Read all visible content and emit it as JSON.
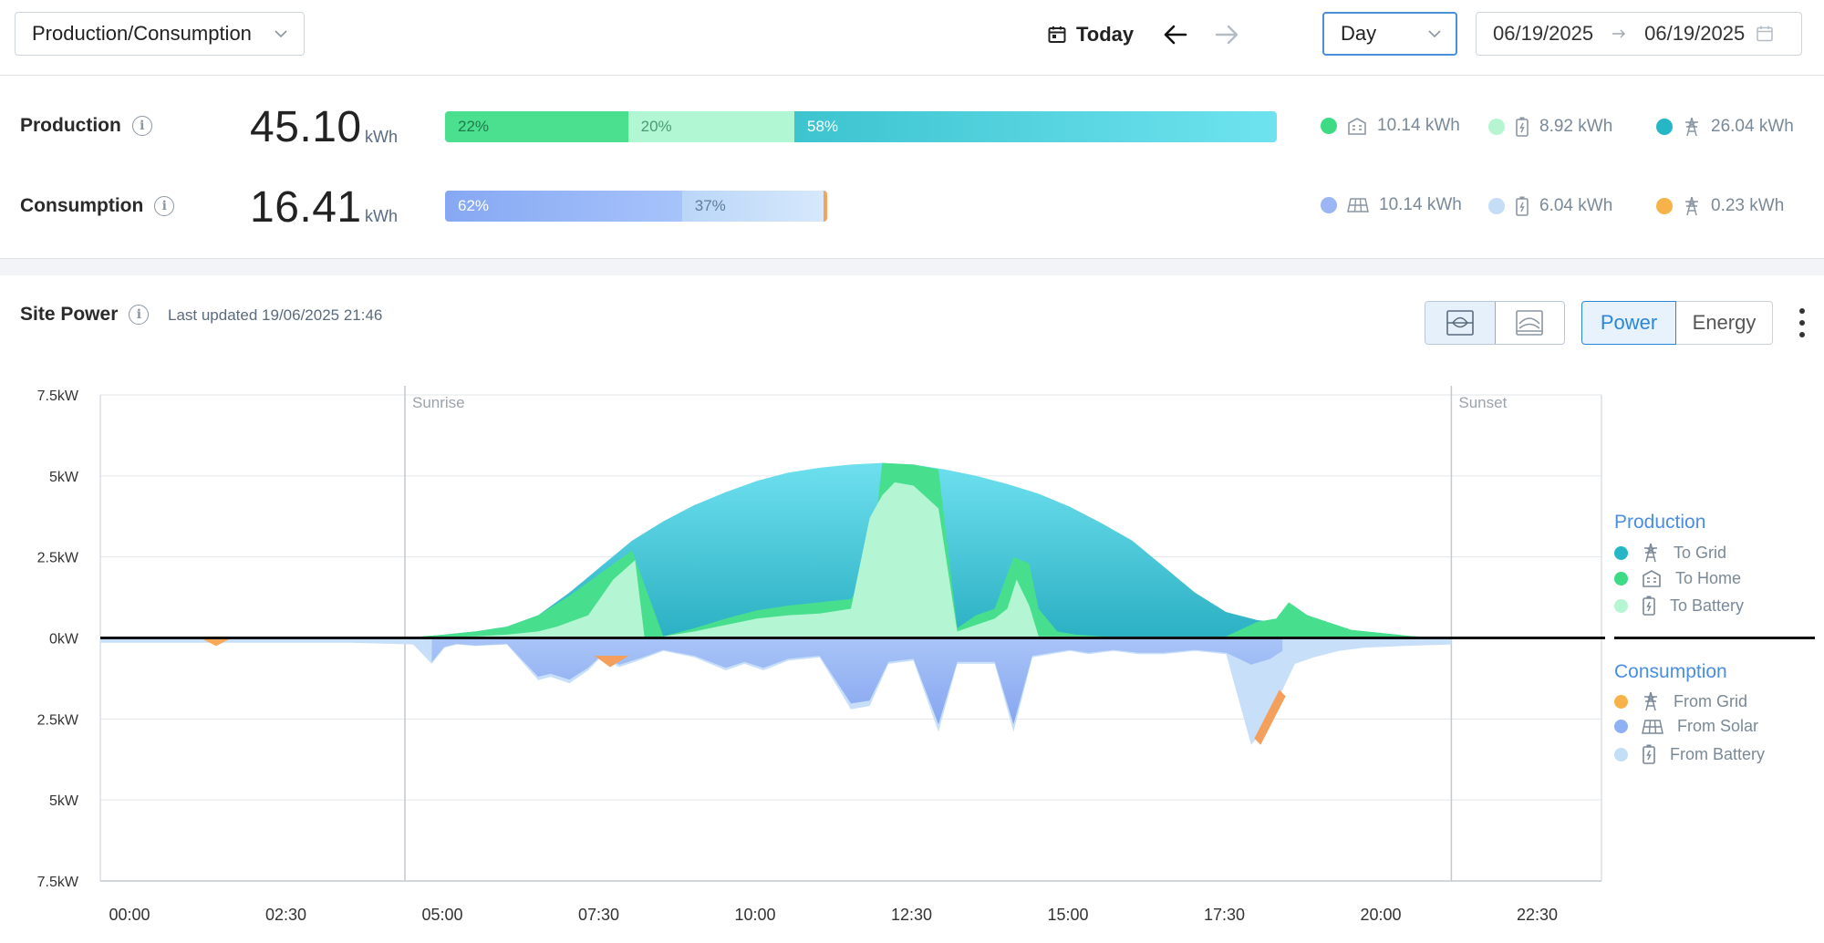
{
  "topbar": {
    "view_select": "Production/Consumption",
    "today_label": "Today",
    "period": "Day",
    "date_from": "06/19/2025",
    "date_to": "06/19/2025"
  },
  "summary": {
    "production": {
      "label": "Production",
      "value": "45.10",
      "unit": "kWh",
      "segments": [
        {
          "label": "22%",
          "pct": 22
        },
        {
          "label": "20%",
          "pct": 20
        },
        {
          "label": "58%",
          "pct": 58
        }
      ],
      "legend": [
        {
          "icon": "home-icon",
          "value": "10.14 kWh",
          "color": "#3ddc84"
        },
        {
          "icon": "battery-icon",
          "value": "8.92 kWh",
          "color": "#b5f5d2"
        },
        {
          "icon": "grid-tower-icon",
          "value": "26.04 kWh",
          "color": "#2bbfd0"
        }
      ]
    },
    "consumption": {
      "label": "Consumption",
      "value": "16.41",
      "unit": "kWh",
      "segments": [
        {
          "label": "62%",
          "pct": 62
        },
        {
          "label": "37%",
          "pct": 37
        },
        {
          "label": "",
          "pct": 1
        }
      ],
      "legend": [
        {
          "icon": "solar-panel-icon",
          "value": "10.14 kWh",
          "color": "#9bb5f5"
        },
        {
          "icon": "battery-icon",
          "value": "6.04 kWh",
          "color": "#c5def8"
        },
        {
          "icon": "grid-tower-icon",
          "value": "0.23 kWh",
          "color": "#f7b34a"
        }
      ]
    }
  },
  "site_power": {
    "title": "Site Power",
    "updated": "Last updated 19/06/2025 21:46",
    "power_label": "Power",
    "energy_label": "Energy"
  },
  "chart_legend": {
    "production_head": "Production",
    "production_items": [
      {
        "label": "To Grid",
        "icon": "grid-tower-icon",
        "color": "#25b7c6"
      },
      {
        "label": "To Home",
        "icon": "home-icon",
        "color": "#3ddc84"
      },
      {
        "label": "To Battery",
        "icon": "battery-icon",
        "color": "#b5f5d2"
      }
    ],
    "consumption_head": "Consumption",
    "consumption_items": [
      {
        "label": "From Grid",
        "icon": "grid-tower-icon",
        "color": "#f7b34a"
      },
      {
        "label": "From Solar",
        "icon": "solar-panel-icon",
        "color": "#8fb0f3"
      },
      {
        "label": "From Battery",
        "icon": "battery-icon",
        "color": "#c5def8"
      }
    ]
  },
  "chart_data": {
    "type": "area",
    "title": "Site Power",
    "y_tick_labels": [
      "7.5kW",
      "5kW",
      "2.5kW",
      "0kW",
      "2.5kW",
      "5kW",
      "7.5kW"
    ],
    "ylim": [
      -7.5,
      7.5
    ],
    "x_tick_labels": [
      "00:00",
      "02:30",
      "05:00",
      "07:30",
      "10:00",
      "12:30",
      "15:00",
      "17:30",
      "20:00",
      "22:30"
    ],
    "xlim_hours": [
      0,
      24
    ],
    "annotations": [
      {
        "label": "Sunrise",
        "hour": 4.87
      },
      {
        "label": "Sunset",
        "hour": 21.6
      }
    ],
    "series": [
      {
        "name": "Production total",
        "hours": [
          4.87,
          5.5,
          6.0,
          6.5,
          7.0,
          7.5,
          8.0,
          8.5,
          9.0,
          9.5,
          10.0,
          10.5,
          11.0,
          11.5,
          12.0,
          12.5,
          13.0,
          13.5,
          14.0,
          14.5,
          15.0,
          15.5,
          16.0,
          16.5,
          17.0,
          17.5,
          18.0,
          18.5,
          19.0,
          19.5,
          20.0,
          20.5,
          21.0,
          21.6
        ],
        "values": [
          0,
          0.1,
          0.2,
          0.35,
          0.7,
          1.4,
          2.2,
          3.0,
          3.6,
          4.1,
          4.5,
          4.85,
          5.1,
          5.25,
          5.35,
          5.4,
          5.35,
          5.2,
          5.0,
          4.75,
          4.45,
          4.05,
          3.55,
          3.0,
          2.2,
          1.4,
          0.8,
          0.55,
          0.45,
          0.3,
          0.2,
          0.1,
          0.05,
          0
        ]
      },
      {
        "name": "To Home",
        "hours": [
          4.87,
          5.5,
          6.0,
          6.5,
          7.0,
          7.5,
          8.0,
          8.5,
          9.0,
          9.5,
          10.0,
          10.5,
          11.0,
          11.5,
          12.0,
          12.3,
          12.5,
          13.0,
          13.4,
          13.7,
          14.0,
          14.3,
          14.6,
          14.85,
          15.0,
          15.3,
          15.6,
          16.0,
          17.0,
          18.0,
          18.5,
          18.8,
          19.0,
          19.3,
          20.0,
          21.0,
          21.6
        ],
        "values": [
          0,
          0.1,
          0.2,
          0.35,
          0.7,
          1.3,
          2.0,
          2.7,
          0.05,
          0.3,
          0.6,
          0.85,
          1.0,
          1.1,
          1.2,
          1.9,
          5.4,
          5.35,
          5.2,
          0.3,
          0.7,
          0.9,
          2.5,
          2.3,
          0.9,
          0.2,
          0.1,
          0.05,
          0.02,
          0.05,
          0.5,
          0.6,
          1.1,
          0.7,
          0.25,
          0.05,
          0
        ]
      },
      {
        "name": "To Battery",
        "hours": [
          4.87,
          6.0,
          6.5,
          7.0,
          7.3,
          7.8,
          8.2,
          8.55,
          8.7,
          9.0,
          9.5,
          10.0,
          10.5,
          11.0,
          11.5,
          12.0,
          12.3,
          12.5,
          12.7,
          13.0,
          13.4,
          13.7,
          14.0,
          14.3,
          14.5,
          14.65,
          14.85,
          15.0,
          21.6
        ],
        "values": [
          0,
          0.05,
          0.1,
          0.2,
          0.35,
          0.7,
          1.8,
          2.4,
          0.02,
          0.05,
          0.2,
          0.4,
          0.6,
          0.7,
          0.75,
          0.9,
          3.7,
          4.4,
          4.8,
          4.7,
          4.0,
          0.2,
          0.4,
          0.6,
          0.9,
          1.8,
          1.0,
          0.05,
          0
        ]
      },
      {
        "name": "Consumption total",
        "hours": [
          0,
          1.0,
          2.0,
          3.0,
          4.0,
          5.0,
          5.3,
          5.5,
          5.7,
          6.0,
          6.5,
          7.0,
          7.2,
          7.5,
          7.8,
          8.0,
          8.3,
          8.6,
          9.0,
          9.5,
          10.0,
          10.3,
          10.6,
          11.0,
          11.5,
          12.0,
          12.3,
          12.6,
          13.0,
          13.4,
          13.7,
          14.0,
          14.3,
          14.6,
          14.9,
          15.2,
          15.5,
          15.8,
          16.2,
          16.6,
          17.0,
          17.5,
          18.0,
          18.4,
          18.7,
          18.9,
          19.1,
          19.4,
          19.8,
          20.2,
          20.8,
          21.6
        ],
        "values": [
          -0.15,
          -0.15,
          -0.15,
          -0.15,
          -0.15,
          -0.2,
          -0.8,
          -0.3,
          -0.2,
          -0.25,
          -0.2,
          -1.3,
          -1.2,
          -1.4,
          -1.0,
          -0.6,
          -0.9,
          -0.7,
          -0.4,
          -0.6,
          -1.0,
          -0.8,
          -1.0,
          -0.7,
          -0.6,
          -2.2,
          -2.1,
          -0.8,
          -0.7,
          -2.9,
          -0.8,
          -0.8,
          -0.8,
          -2.9,
          -0.6,
          -0.5,
          -0.4,
          -0.5,
          -0.4,
          -0.5,
          -0.5,
          -0.4,
          -0.5,
          -3.3,
          -2.6,
          -1.6,
          -0.8,
          -0.6,
          -0.4,
          -0.3,
          -0.25,
          -0.2
        ]
      }
    ]
  }
}
